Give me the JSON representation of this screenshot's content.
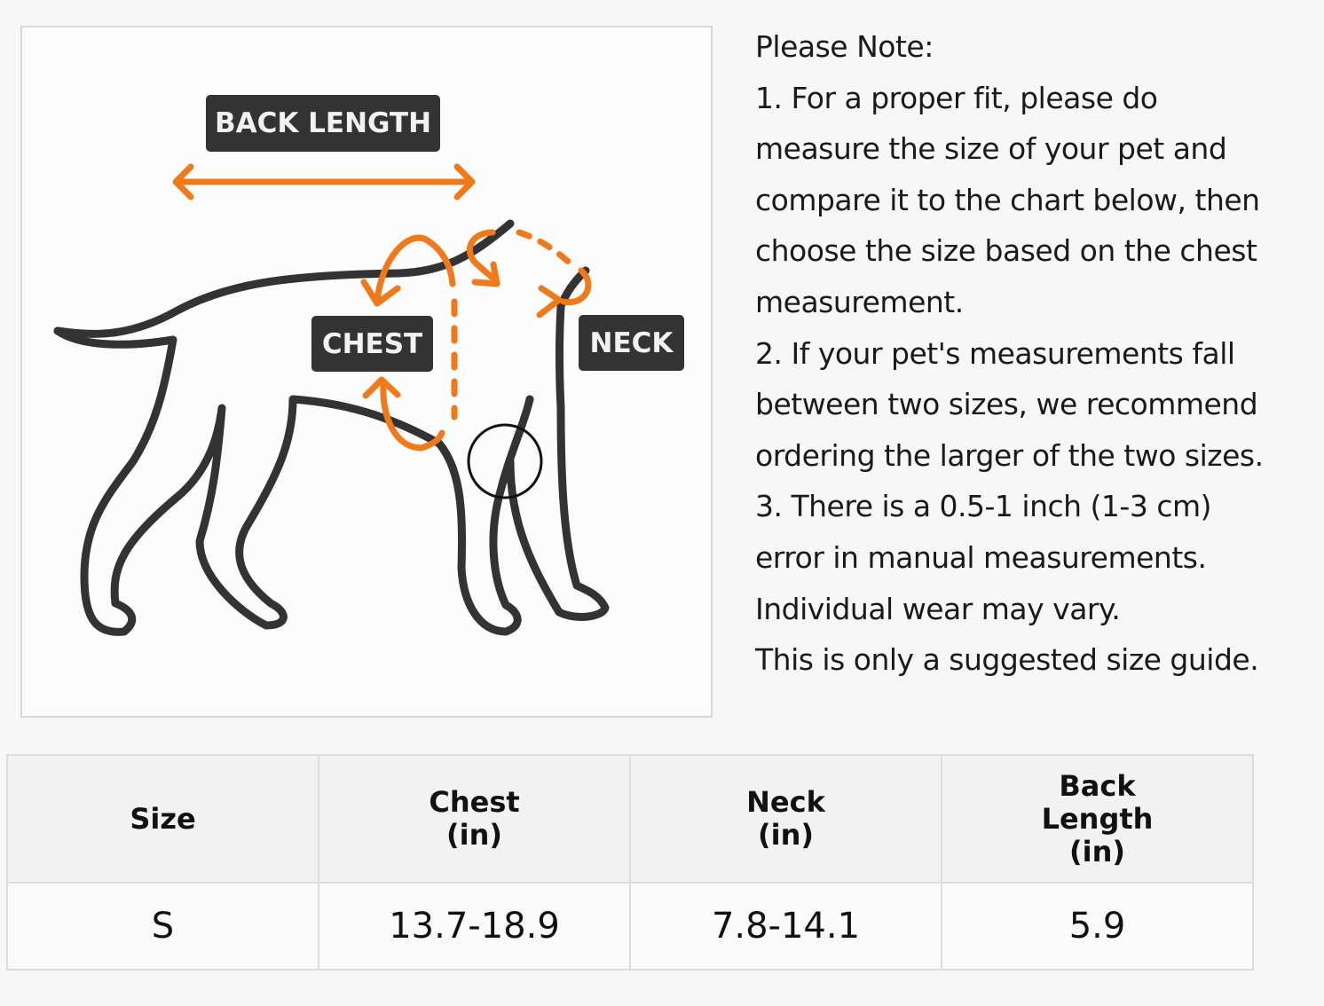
{
  "diagram": {
    "labels": {
      "back_length": "BACK LENGTH",
      "chest": "CHEST",
      "neck": "NECK"
    },
    "colors": {
      "arrow": "#f07a1a",
      "outline": "#333333",
      "label_bg": "#333333"
    }
  },
  "notes": {
    "lines": [
      "Please Note:",
      "1. For a proper fit, please do",
      "measure the size of your pet and",
      "compare it to the chart below, then",
      "choose the size based on the chest",
      "measurement.",
      "2. If your pet's measurements fall",
      "between two sizes, we recommend",
      "ordering the larger of the two sizes.",
      "3. There is a 0.5-1 inch (1-3 cm)",
      "error in manual measurements.",
      "Individual wear may vary.",
      "This is only a suggested size guide."
    ]
  },
  "table": {
    "headers": [
      [
        "Size"
      ],
      [
        "Chest",
        "(in)"
      ],
      [
        "Neck",
        "(in)"
      ],
      [
        "Back",
        "Length",
        "(in)"
      ]
    ],
    "rows": [
      [
        "S",
        "13.7-18.9",
        "7.8-14.1",
        "5.9"
      ]
    ]
  }
}
